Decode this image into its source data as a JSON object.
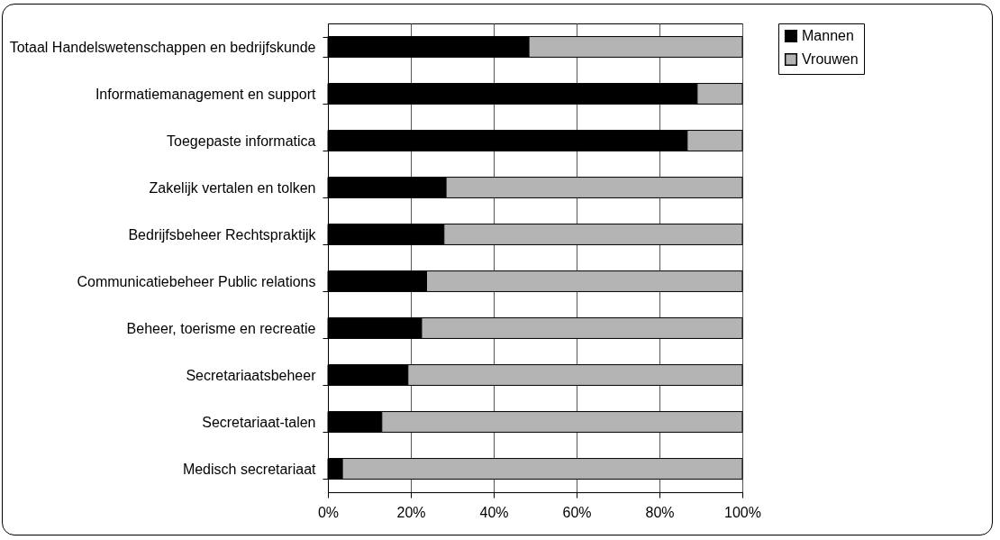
{
  "chart_data": {
    "type": "bar",
    "orientation": "horizontal",
    "stacked": true,
    "categories": [
      "Totaal Handelswetenschappen en bedrijfskunde",
      "Informatiemanagement en support",
      "Toegepaste informatica",
      "Zakelijk vertalen en tolken",
      "Bedrijfsbeheer Rechtspraktijk",
      "Communicatiebeheer Public relations",
      "Beheer, toerisme en recreatie",
      "Secretariaatsbeheer",
      "Secretariaat-talen",
      "Medisch secretariaat"
    ],
    "series": [
      {
        "name": "Mannen",
        "color": "#000000",
        "values": [
          48.5,
          89.1,
          86.7,
          28.5,
          28.0,
          23.8,
          22.6,
          19.3,
          13.0,
          3.5
        ]
      },
      {
        "name": "Vrouwen",
        "color": "#b4b4b4",
        "values": [
          51.5,
          10.9,
          13.3,
          71.5,
          72.0,
          76.2,
          77.4,
          80.7,
          87.0,
          96.5
        ]
      }
    ],
    "xlim": [
      0,
      100
    ],
    "xticks": [
      {
        "value": 0,
        "label": "0%"
      },
      {
        "value": 20,
        "label": "20%"
      },
      {
        "value": 40,
        "label": "40%"
      },
      {
        "value": 60,
        "label": "60%"
      },
      {
        "value": 80,
        "label": "80%"
      },
      {
        "value": 100,
        "label": "100%"
      }
    ],
    "grid": "x",
    "legend": "right"
  }
}
